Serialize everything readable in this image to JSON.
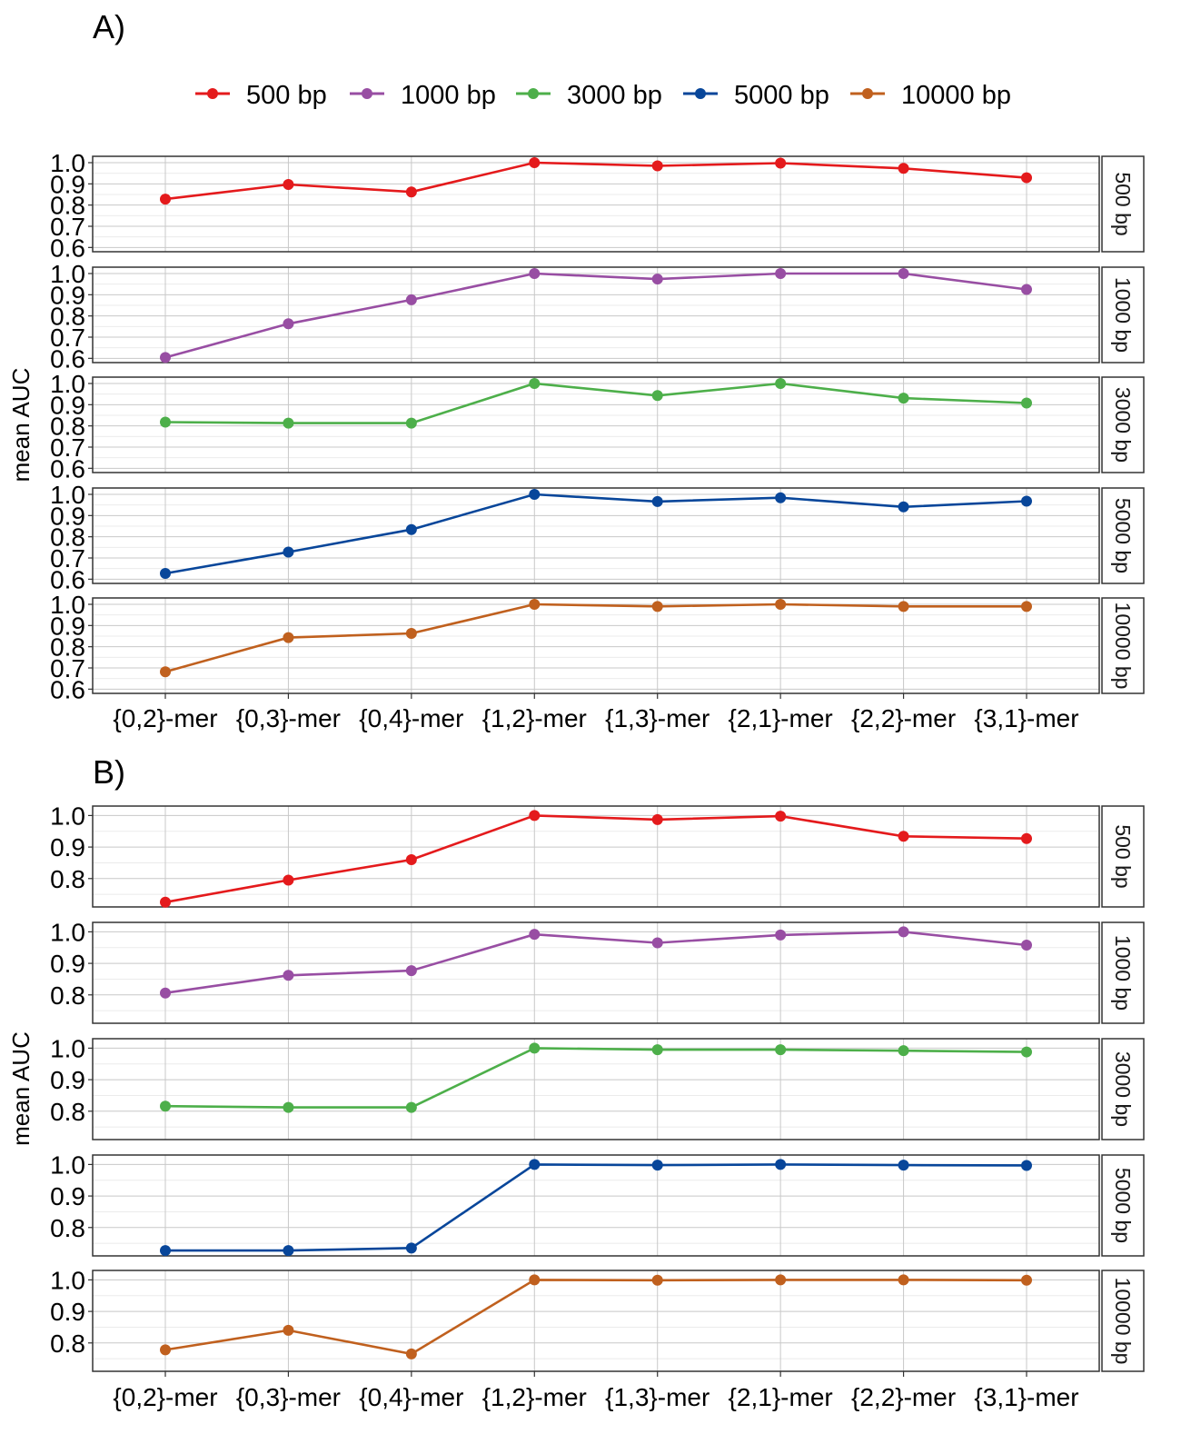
{
  "legend": [
    {
      "label": "500 bp",
      "color": "#e41a1c"
    },
    {
      "label": "1000 bp",
      "color": "#984ea3"
    },
    {
      "label": "3000 bp",
      "color": "#4daf4a"
    },
    {
      "label": "5000 bp",
      "color": "#08469a"
    },
    {
      "label": "10000 bp",
      "color": "#c0601e"
    }
  ],
  "chart_data": [
    {
      "type": "line",
      "title": "A)",
      "ylabel": "mean AUC",
      "categories": [
        "{0,2}-mer",
        "{0,3}-mer",
        "{0,4}-mer",
        "{1,2}-mer",
        "{1,3}-mer",
        "{2,1}-mer",
        "{2,2}-mer",
        "{3,1}-mer"
      ],
      "ylim": [
        0.58,
        1.03
      ],
      "yticks": [
        "0.6",
        "0.7",
        "0.8",
        "0.9",
        "1.0"
      ],
      "grid": true,
      "legend_position": "top",
      "series": [
        {
          "name": "500 bp",
          "color": "#e41a1c",
          "values": [
            0.828,
            0.897,
            0.862,
            1.0,
            0.985,
            0.998,
            0.973,
            0.929
          ]
        },
        {
          "name": "1000 bp",
          "color": "#984ea3",
          "values": [
            0.604,
            0.763,
            0.876,
            1.0,
            0.974,
            1.0,
            1.0,
            0.925
          ]
        },
        {
          "name": "3000 bp",
          "color": "#4daf4a",
          "values": [
            0.818,
            0.813,
            0.813,
            1.0,
            0.943,
            1.0,
            0.931,
            0.908
          ]
        },
        {
          "name": "5000 bp",
          "color": "#08469a",
          "values": [
            0.627,
            0.728,
            0.834,
            1.0,
            0.966,
            0.984,
            0.941,
            0.968
          ]
        },
        {
          "name": "10000 bp",
          "color": "#c0601e",
          "values": [
            0.682,
            0.843,
            0.863,
            1.0,
            0.99,
            1.0,
            0.99,
            0.99
          ]
        }
      ]
    },
    {
      "type": "line",
      "title": "B)",
      "ylabel": "mean AUC",
      "categories": [
        "{0,2}-mer",
        "{0,3}-mer",
        "{0,4}-mer",
        "{1,2}-mer",
        "{1,3}-mer",
        "{2,1}-mer",
        "{2,2}-mer",
        "{3,1}-mer"
      ],
      "ylim": [
        0.71,
        1.03
      ],
      "yticks": [
        "0.8",
        "0.9",
        "1.0"
      ],
      "grid": true,
      "series": [
        {
          "name": "500 bp",
          "color": "#e41a1c",
          "values": [
            0.725,
            0.795,
            0.86,
            1.0,
            0.987,
            0.998,
            0.934,
            0.927
          ]
        },
        {
          "name": "1000 bp",
          "color": "#984ea3",
          "values": [
            0.806,
            0.862,
            0.877,
            0.992,
            0.965,
            0.99,
            1.0,
            0.958
          ]
        },
        {
          "name": "3000 bp",
          "color": "#4daf4a",
          "values": [
            0.816,
            0.812,
            0.812,
            1.0,
            0.995,
            0.995,
            0.992,
            0.988
          ]
        },
        {
          "name": "5000 bp",
          "color": "#08469a",
          "values": [
            0.727,
            0.727,
            0.735,
            1.0,
            0.998,
            1.0,
            0.998,
            0.997
          ]
        },
        {
          "name": "10000 bp",
          "color": "#c0601e",
          "values": [
            0.778,
            0.84,
            0.765,
            1.0,
            0.999,
            1.0,
            1.0,
            0.999
          ]
        }
      ]
    }
  ]
}
